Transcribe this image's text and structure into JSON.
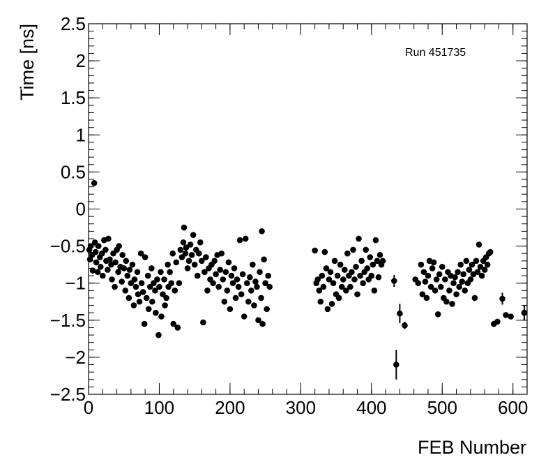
{
  "chart_data": {
    "type": "scatter",
    "annotation": "Run 451735",
    "xlabel": "FEB Number",
    "ylabel": "Time [ns]",
    "xlim": [
      0,
      620
    ],
    "ylim": [
      -2.5,
      2.5
    ],
    "xticks": [
      0,
      100,
      200,
      300,
      400,
      500,
      600
    ],
    "yticks": [
      {
        "value": -2.5,
        "label": "−2.5"
      },
      {
        "value": -2,
        "label": "−2"
      },
      {
        "value": -1.5,
        "label": "−1.5"
      },
      {
        "value": -1,
        "label": "−1"
      },
      {
        "value": -0.5,
        "label": "−0.5"
      },
      0,
      0.5,
      1,
      1.5,
      2,
      2.5
    ],
    "x_minor_divisions": 5,
    "y_minor_divisions": 5,
    "color": "#000000",
    "x": [
      1,
      2,
      3,
      5,
      6,
      8,
      9,
      10,
      11,
      13,
      14,
      16,
      17,
      19,
      20,
      22,
      24,
      25,
      27,
      28,
      30,
      32,
      33,
      35,
      37,
      38,
      40,
      42,
      43,
      45,
      47,
      48,
      50,
      52,
      53,
      55,
      57,
      58,
      60,
      62,
      64,
      65,
      67,
      69,
      70,
      72,
      74,
      75,
      77,
      79,
      80,
      82,
      84,
      85,
      87,
      89,
      90,
      92,
      94,
      95,
      97,
      99,
      100,
      102,
      103,
      105,
      107,
      108,
      110,
      112,
      113,
      115,
      117,
      119,
      120,
      122,
      124,
      126,
      128,
      130,
      132,
      134,
      135,
      137,
      138,
      140,
      142,
      144,
      146,
      148,
      150,
      152,
      154,
      156,
      158,
      160,
      162,
      164,
      166,
      168,
      170,
      172,
      174,
      176,
      178,
      180,
      182,
      184,
      186,
      188,
      190,
      192,
      194,
      196,
      198,
      200,
      202,
      204,
      206,
      208,
      210,
      212,
      214,
      216,
      218,
      220,
      222,
      224,
      226,
      228,
      230,
      232,
      234,
      236,
      238,
      240,
      242,
      244,
      245,
      246,
      248,
      250,
      252,
      254,
      256,
      320,
      322,
      324,
      326,
      328,
      330,
      332,
      334,
      336,
      338,
      340,
      342,
      344,
      346,
      348,
      350,
      352,
      354,
      356,
      358,
      360,
      362,
      364,
      366,
      368,
      370,
      372,
      374,
      376,
      378,
      380,
      382,
      384,
      386,
      388,
      390,
      392,
      394,
      396,
      398,
      400,
      402,
      404,
      406,
      408,
      410,
      412,
      414,
      416,
      432,
      435,
      440,
      447,
      462,
      466,
      470,
      472,
      474,
      476,
      478,
      480,
      482,
      484,
      486,
      488,
      490,
      492,
      494,
      496,
      498,
      500,
      502,
      504,
      506,
      508,
      510,
      512,
      514,
      516,
      518,
      520,
      522,
      524,
      526,
      528,
      530,
      532,
      534,
      536,
      538,
      540,
      542,
      544,
      546,
      548,
      550,
      552,
      554,
      556,
      558,
      560,
      562,
      564,
      566,
      568,
      573,
      578,
      585,
      590,
      597,
      616
    ],
    "values": [
      -0.55,
      -0.68,
      -0.5,
      -0.62,
      -0.83,
      0.35,
      -0.45,
      -0.58,
      -0.72,
      -0.85,
      -0.5,
      -0.65,
      -0.78,
      -0.6,
      -0.9,
      -0.42,
      -0.55,
      -0.7,
      -0.82,
      -0.4,
      -0.68,
      -0.75,
      -0.95,
      -0.6,
      -1.05,
      -0.72,
      -0.55,
      -0.85,
      -0.5,
      -0.78,
      -0.98,
      -0.62,
      -0.8,
      -1.1,
      -0.7,
      -0.9,
      -1.2,
      -0.82,
      -1.0,
      -0.75,
      -1.3,
      -0.95,
      -1.05,
      -0.85,
      -1.15,
      -1.25,
      -0.6,
      -1.0,
      -1.12,
      -1.55,
      -0.65,
      -1.2,
      -0.9,
      -1.35,
      -1.05,
      -0.8,
      -1.25,
      -1.0,
      -1.1,
      -1.4,
      -0.95,
      -1.7,
      -1.05,
      -0.85,
      -1.45,
      -1.15,
      -0.95,
      -1.3,
      -1.2,
      -0.75,
      -1.05,
      -0.85,
      -1.0,
      -0.6,
      -1.55,
      -1.1,
      -0.72,
      -1.6,
      -1.0,
      -0.55,
      -0.65,
      -0.45,
      -0.25,
      -0.6,
      -0.52,
      -0.8,
      -0.7,
      -0.48,
      -0.62,
      -0.35,
      -0.75,
      -0.55,
      -0.9,
      -0.6,
      -0.45,
      -0.7,
      -1.53,
      -0.85,
      -0.65,
      -1.1,
      -0.8,
      -0.95,
      -0.75,
      -1.0,
      -0.7,
      -0.88,
      -0.62,
      -1.05,
      -0.82,
      -0.6,
      -0.95,
      -1.25,
      -0.85,
      -1.1,
      -0.72,
      -1.35,
      -0.9,
      -1.0,
      -0.8,
      -1.2,
      -0.95,
      -1.05,
      -0.42,
      -1.15,
      -0.88,
      -1.45,
      -0.4,
      -1.0,
      -1.25,
      -0.92,
      -1.1,
      -0.75,
      -1.3,
      -0.98,
      -1.05,
      -1.5,
      -0.85,
      -1.2,
      -0.3,
      -1.55,
      -0.68,
      -1.0,
      -1.35,
      -0.9,
      -1.05,
      -0.56,
      -1.0,
      -0.95,
      -1.1,
      -1.25,
      -0.9,
      -1.05,
      -0.58,
      -0.8,
      -1.35,
      -0.95,
      -0.85,
      -1.28,
      -1.0,
      -0.7,
      -1.15,
      -0.9,
      -1.2,
      -0.75,
      -1.05,
      -0.95,
      -0.82,
      -1.1,
      -0.6,
      -0.9,
      -1.05,
      -0.85,
      -0.55,
      -0.95,
      -0.78,
      -1.15,
      -0.4,
      -0.9,
      -0.7,
      -1.0,
      -0.85,
      -0.55,
      -0.8,
      -0.95,
      -0.65,
      -0.9,
      -0.75,
      -1.1,
      -0.42,
      -0.7,
      -0.92,
      -0.62,
      -0.75,
      -0.7,
      -0.97,
      -2.1,
      -1.41,
      -1.57,
      -0.95,
      -1.0,
      -0.75,
      -1.15,
      -0.85,
      -0.98,
      -1.2,
      -0.9,
      -0.7,
      -1.05,
      -0.8,
      -0.72,
      -1.1,
      -0.95,
      -1.42,
      -0.88,
      -1.05,
      -0.78,
      -1.2,
      -0.95,
      -1.25,
      -0.85,
      -1.1,
      -0.9,
      -1.28,
      -1.0,
      -0.92,
      -1.15,
      -0.85,
      -1.05,
      -0.75,
      -0.98,
      -0.88,
      -1.1,
      -0.7,
      -1.0,
      -0.82,
      -0.95,
      -0.75,
      -0.88,
      -1.2,
      -0.7,
      -0.85,
      -0.48,
      -0.78,
      -0.9,
      -0.7,
      -0.82,
      -0.65,
      -0.75,
      -0.6,
      -0.58,
      -1.55,
      -1.52,
      -1.21,
      -1.43,
      -1.45,
      -1.4
    ],
    "errors": [
      0.03,
      0.03,
      0.03,
      0.03,
      0.03,
      0.03,
      0.03,
      0.03,
      0.03,
      0.03,
      0.03,
      0.03,
      0.03,
      0.03,
      0.03,
      0.03,
      0.03,
      0.03,
      0.03,
      0.03,
      0.03,
      0.03,
      0.03,
      0.03,
      0.03,
      0.03,
      0.03,
      0.03,
      0.03,
      0.03,
      0.03,
      0.03,
      0.03,
      0.03,
      0.03,
      0.03,
      0.03,
      0.03,
      0.03,
      0.03,
      0.03,
      0.03,
      0.03,
      0.03,
      0.03,
      0.03,
      0.03,
      0.03,
      0.03,
      0.03,
      0.03,
      0.03,
      0.03,
      0.03,
      0.03,
      0.03,
      0.03,
      0.03,
      0.03,
      0.03,
      0.03,
      0.03,
      0.03,
      0.03,
      0.03,
      0.03,
      0.03,
      0.03,
      0.03,
      0.03,
      0.03,
      0.03,
      0.03,
      0.03,
      0.03,
      0.03,
      0.03,
      0.03,
      0.03,
      0.03,
      0.03,
      0.03,
      0.03,
      0.03,
      0.03,
      0.03,
      0.03,
      0.03,
      0.03,
      0.03,
      0.03,
      0.03,
      0.03,
      0.03,
      0.03,
      0.03,
      0.03,
      0.03,
      0.03,
      0.03,
      0.03,
      0.03,
      0.03,
      0.03,
      0.03,
      0.03,
      0.03,
      0.03,
      0.03,
      0.03,
      0.03,
      0.03,
      0.03,
      0.03,
      0.03,
      0.03,
      0.03,
      0.03,
      0.03,
      0.03,
      0.03,
      0.03,
      0.03,
      0.03,
      0.03,
      0.03,
      0.03,
      0.03,
      0.03,
      0.03,
      0.03,
      0.03,
      0.03,
      0.03,
      0.03,
      0.03,
      0.03,
      0.03,
      0.03,
      0.03,
      0.03,
      0.03,
      0.03,
      0.03,
      0.03,
      0.03,
      0.03,
      0.03,
      0.03,
      0.03,
      0.03,
      0.03,
      0.03,
      0.03,
      0.03,
      0.03,
      0.03,
      0.03,
      0.03,
      0.03,
      0.03,
      0.03,
      0.03,
      0.03,
      0.03,
      0.03,
      0.03,
      0.03,
      0.03,
      0.03,
      0.03,
      0.03,
      0.03,
      0.03,
      0.03,
      0.03,
      0.03,
      0.03,
      0.03,
      0.03,
      0.03,
      0.03,
      0.03,
      0.03,
      0.03,
      0.03,
      0.03,
      0.03,
      0.03,
      0.03,
      0.03,
      0.03,
      0.03,
      0.03,
      0.08,
      0.2,
      0.13,
      0.05,
      0.03,
      0.03,
      0.03,
      0.03,
      0.03,
      0.03,
      0.03,
      0.03,
      0.03,
      0.03,
      0.03,
      0.03,
      0.03,
      0.03,
      0.03,
      0.03,
      0.03,
      0.03,
      0.03,
      0.03,
      0.03,
      0.03,
      0.03,
      0.03,
      0.03,
      0.03,
      0.03,
      0.03,
      0.03,
      0.03,
      0.03,
      0.03,
      0.03,
      0.03,
      0.03,
      0.03,
      0.03,
      0.03,
      0.03,
      0.03,
      0.03,
      0.03,
      0.03,
      0.03,
      0.03,
      0.03,
      0.03,
      0.03,
      0.03,
      0.03,
      0.03,
      0.03,
      0.03,
      0.03,
      0.08,
      0.03,
      0.03,
      0.1
    ]
  }
}
